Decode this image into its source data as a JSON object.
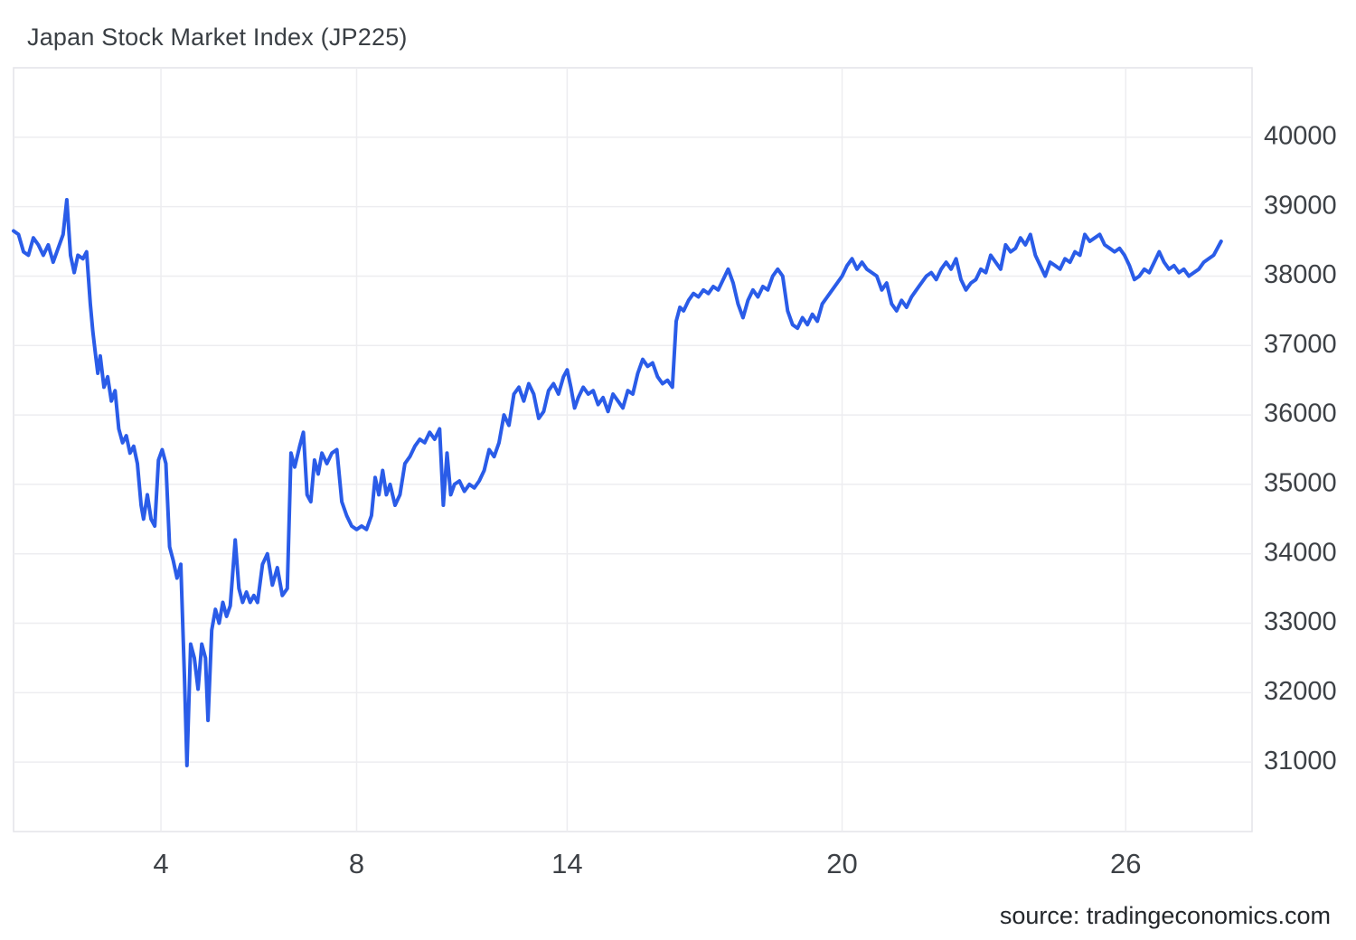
{
  "chart_data": {
    "type": "line",
    "title": "Japan Stock Market Index (JP225)",
    "source": "source: tradingeconomics.com",
    "xlabel": "",
    "ylabel": "",
    "ylim": [
      30000,
      41000
    ],
    "grid": true,
    "legend": "none",
    "colors": {
      "line": "#2a5ce8",
      "grid": "#ededf0",
      "border": "#e4e4e8",
      "tick_text": "#3d4146",
      "background": "#ffffff"
    },
    "y_ticks": [
      31000,
      32000,
      33000,
      34000,
      35000,
      36000,
      37000,
      38000,
      39000,
      40000
    ],
    "x_ticks": [
      {
        "label": "4",
        "pos": 0.119
      },
      {
        "label": "8",
        "pos": 0.277
      },
      {
        "label": "14",
        "pos": 0.447
      },
      {
        "label": "20",
        "pos": 0.669
      },
      {
        "label": "26",
        "pos": 0.898
      }
    ],
    "series": [
      {
        "name": "JP225",
        "points": [
          [
            0.0,
            38650
          ],
          [
            0.004,
            38600
          ],
          [
            0.008,
            38350
          ],
          [
            0.012,
            38300
          ],
          [
            0.016,
            38550
          ],
          [
            0.02,
            38450
          ],
          [
            0.024,
            38300
          ],
          [
            0.028,
            38450
          ],
          [
            0.032,
            38200
          ],
          [
            0.036,
            38400
          ],
          [
            0.04,
            38600
          ],
          [
            0.043,
            39100
          ],
          [
            0.046,
            38300
          ],
          [
            0.049,
            38050
          ],
          [
            0.052,
            38300
          ],
          [
            0.056,
            38250
          ],
          [
            0.059,
            38350
          ],
          [
            0.062,
            37600
          ],
          [
            0.064,
            37200
          ],
          [
            0.066,
            36900
          ],
          [
            0.068,
            36600
          ],
          [
            0.07,
            36850
          ],
          [
            0.073,
            36400
          ],
          [
            0.076,
            36550
          ],
          [
            0.079,
            36200
          ],
          [
            0.082,
            36350
          ],
          [
            0.085,
            35800
          ],
          [
            0.088,
            35600
          ],
          [
            0.091,
            35700
          ],
          [
            0.094,
            35450
          ],
          [
            0.097,
            35550
          ],
          [
            0.1,
            35300
          ],
          [
            0.103,
            34700
          ],
          [
            0.105,
            34500
          ],
          [
            0.108,
            34850
          ],
          [
            0.111,
            34500
          ],
          [
            0.114,
            34400
          ],
          [
            0.117,
            35350
          ],
          [
            0.12,
            35500
          ],
          [
            0.123,
            35300
          ],
          [
            0.126,
            34100
          ],
          [
            0.129,
            33900
          ],
          [
            0.132,
            33650
          ],
          [
            0.135,
            33850
          ],
          [
            0.138,
            32200
          ],
          [
            0.14,
            30950
          ],
          [
            0.143,
            32700
          ],
          [
            0.146,
            32500
          ],
          [
            0.149,
            32050
          ],
          [
            0.152,
            32700
          ],
          [
            0.155,
            32500
          ],
          [
            0.157,
            31600
          ],
          [
            0.16,
            32900
          ],
          [
            0.163,
            33200
          ],
          [
            0.166,
            33000
          ],
          [
            0.169,
            33300
          ],
          [
            0.172,
            33100
          ],
          [
            0.175,
            33250
          ],
          [
            0.179,
            34200
          ],
          [
            0.182,
            33500
          ],
          [
            0.185,
            33300
          ],
          [
            0.188,
            33450
          ],
          [
            0.191,
            33300
          ],
          [
            0.194,
            33400
          ],
          [
            0.197,
            33300
          ],
          [
            0.201,
            33850
          ],
          [
            0.205,
            34000
          ],
          [
            0.209,
            33550
          ],
          [
            0.213,
            33800
          ],
          [
            0.217,
            33400
          ],
          [
            0.221,
            33500
          ],
          [
            0.224,
            35450
          ],
          [
            0.227,
            35250
          ],
          [
            0.231,
            35550
          ],
          [
            0.234,
            35750
          ],
          [
            0.237,
            34850
          ],
          [
            0.24,
            34750
          ],
          [
            0.243,
            35350
          ],
          [
            0.246,
            35150
          ],
          [
            0.249,
            35450
          ],
          [
            0.253,
            35300
          ],
          [
            0.257,
            35450
          ],
          [
            0.261,
            35500
          ],
          [
            0.265,
            34750
          ],
          [
            0.269,
            34550
          ],
          [
            0.273,
            34400
          ],
          [
            0.277,
            34350
          ],
          [
            0.281,
            34400
          ],
          [
            0.285,
            34350
          ],
          [
            0.289,
            34550
          ],
          [
            0.292,
            35100
          ],
          [
            0.295,
            34850
          ],
          [
            0.298,
            35200
          ],
          [
            0.301,
            34850
          ],
          [
            0.304,
            35000
          ],
          [
            0.308,
            34700
          ],
          [
            0.312,
            34850
          ],
          [
            0.316,
            35300
          ],
          [
            0.32,
            35400
          ],
          [
            0.324,
            35550
          ],
          [
            0.328,
            35650
          ],
          [
            0.332,
            35600
          ],
          [
            0.336,
            35750
          ],
          [
            0.34,
            35650
          ],
          [
            0.344,
            35800
          ],
          [
            0.347,
            34700
          ],
          [
            0.35,
            35450
          ],
          [
            0.353,
            34850
          ],
          [
            0.356,
            35000
          ],
          [
            0.36,
            35050
          ],
          [
            0.364,
            34900
          ],
          [
            0.368,
            35000
          ],
          [
            0.372,
            34950
          ],
          [
            0.376,
            35050
          ],
          [
            0.38,
            35200
          ],
          [
            0.384,
            35500
          ],
          [
            0.388,
            35400
          ],
          [
            0.392,
            35600
          ],
          [
            0.396,
            36000
          ],
          [
            0.4,
            35850
          ],
          [
            0.404,
            36300
          ],
          [
            0.408,
            36400
          ],
          [
            0.412,
            36200
          ],
          [
            0.416,
            36450
          ],
          [
            0.42,
            36300
          ],
          [
            0.424,
            35950
          ],
          [
            0.428,
            36050
          ],
          [
            0.432,
            36350
          ],
          [
            0.436,
            36450
          ],
          [
            0.44,
            36300
          ],
          [
            0.444,
            36550
          ],
          [
            0.447,
            36650
          ],
          [
            0.45,
            36400
          ],
          [
            0.453,
            36100
          ],
          [
            0.456,
            36250
          ],
          [
            0.46,
            36400
          ],
          [
            0.464,
            36300
          ],
          [
            0.468,
            36350
          ],
          [
            0.472,
            36150
          ],
          [
            0.476,
            36250
          ],
          [
            0.48,
            36050
          ],
          [
            0.484,
            36300
          ],
          [
            0.488,
            36200
          ],
          [
            0.492,
            36100
          ],
          [
            0.496,
            36350
          ],
          [
            0.5,
            36300
          ],
          [
            0.504,
            36600
          ],
          [
            0.508,
            36800
          ],
          [
            0.512,
            36700
          ],
          [
            0.516,
            36750
          ],
          [
            0.52,
            36550
          ],
          [
            0.524,
            36450
          ],
          [
            0.528,
            36500
          ],
          [
            0.532,
            36400
          ],
          [
            0.535,
            37350
          ],
          [
            0.538,
            37550
          ],
          [
            0.541,
            37500
          ],
          [
            0.545,
            37650
          ],
          [
            0.549,
            37750
          ],
          [
            0.553,
            37700
          ],
          [
            0.557,
            37800
          ],
          [
            0.561,
            37750
          ],
          [
            0.565,
            37850
          ],
          [
            0.569,
            37800
          ],
          [
            0.573,
            37950
          ],
          [
            0.577,
            38100
          ],
          [
            0.581,
            37900
          ],
          [
            0.585,
            37600
          ],
          [
            0.589,
            37400
          ],
          [
            0.593,
            37650
          ],
          [
            0.597,
            37800
          ],
          [
            0.601,
            37700
          ],
          [
            0.605,
            37850
          ],
          [
            0.609,
            37800
          ],
          [
            0.613,
            38000
          ],
          [
            0.617,
            38100
          ],
          [
            0.621,
            38000
          ],
          [
            0.625,
            37500
          ],
          [
            0.629,
            37300
          ],
          [
            0.633,
            37250
          ],
          [
            0.637,
            37400
          ],
          [
            0.641,
            37300
          ],
          [
            0.645,
            37450
          ],
          [
            0.649,
            37350
          ],
          [
            0.653,
            37600
          ],
          [
            0.657,
            37700
          ],
          [
            0.661,
            37800
          ],
          [
            0.665,
            37900
          ],
          [
            0.669,
            38000
          ],
          [
            0.673,
            38150
          ],
          [
            0.677,
            38250
          ],
          [
            0.681,
            38100
          ],
          [
            0.685,
            38200
          ],
          [
            0.689,
            38100
          ],
          [
            0.693,
            38050
          ],
          [
            0.697,
            38000
          ],
          [
            0.701,
            37800
          ],
          [
            0.705,
            37900
          ],
          [
            0.709,
            37600
          ],
          [
            0.713,
            37500
          ],
          [
            0.717,
            37650
          ],
          [
            0.721,
            37550
          ],
          [
            0.725,
            37700
          ],
          [
            0.729,
            37800
          ],
          [
            0.733,
            37900
          ],
          [
            0.737,
            38000
          ],
          [
            0.741,
            38050
          ],
          [
            0.745,
            37950
          ],
          [
            0.749,
            38100
          ],
          [
            0.753,
            38200
          ],
          [
            0.757,
            38100
          ],
          [
            0.761,
            38250
          ],
          [
            0.765,
            37950
          ],
          [
            0.769,
            37800
          ],
          [
            0.773,
            37900
          ],
          [
            0.777,
            37950
          ],
          [
            0.781,
            38100
          ],
          [
            0.785,
            38050
          ],
          [
            0.789,
            38300
          ],
          [
            0.793,
            38200
          ],
          [
            0.797,
            38100
          ],
          [
            0.801,
            38450
          ],
          [
            0.805,
            38350
          ],
          [
            0.809,
            38400
          ],
          [
            0.813,
            38550
          ],
          [
            0.817,
            38450
          ],
          [
            0.821,
            38600
          ],
          [
            0.825,
            38300
          ],
          [
            0.829,
            38150
          ],
          [
            0.833,
            38000
          ],
          [
            0.837,
            38200
          ],
          [
            0.841,
            38150
          ],
          [
            0.845,
            38100
          ],
          [
            0.849,
            38250
          ],
          [
            0.853,
            38200
          ],
          [
            0.857,
            38350
          ],
          [
            0.861,
            38300
          ],
          [
            0.865,
            38600
          ],
          [
            0.869,
            38500
          ],
          [
            0.873,
            38550
          ],
          [
            0.877,
            38600
          ],
          [
            0.881,
            38450
          ],
          [
            0.885,
            38400
          ],
          [
            0.889,
            38350
          ],
          [
            0.893,
            38400
          ],
          [
            0.897,
            38300
          ],
          [
            0.901,
            38150
          ],
          [
            0.905,
            37950
          ],
          [
            0.909,
            38000
          ],
          [
            0.913,
            38100
          ],
          [
            0.917,
            38050
          ],
          [
            0.921,
            38200
          ],
          [
            0.925,
            38350
          ],
          [
            0.929,
            38200
          ],
          [
            0.933,
            38100
          ],
          [
            0.937,
            38150
          ],
          [
            0.941,
            38050
          ],
          [
            0.945,
            38100
          ],
          [
            0.949,
            38000
          ],
          [
            0.953,
            38050
          ],
          [
            0.957,
            38100
          ],
          [
            0.961,
            38200
          ],
          [
            0.965,
            38250
          ],
          [
            0.969,
            38300
          ],
          [
            0.975,
            38500
          ]
        ]
      }
    ]
  }
}
